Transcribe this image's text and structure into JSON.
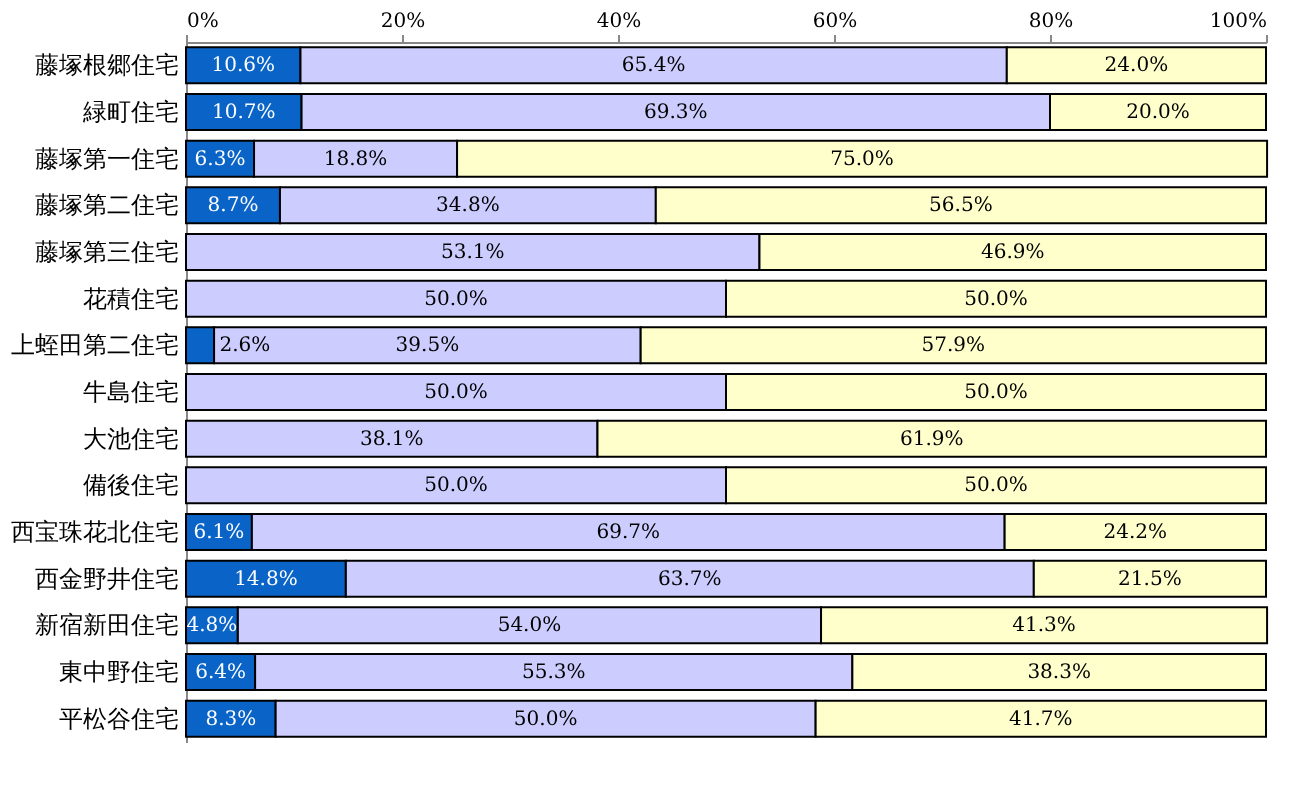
{
  "chart_data": {
    "type": "bar",
    "orientation": "horizontal",
    "stacked": true,
    "categories": [
      "藤塚根郷住宅",
      "緑町住宅",
      "藤塚第一住宅",
      "藤塚第二住宅",
      "藤塚第三住宅",
      "花積住宅",
      "上蛭田第二住宅",
      "牛島住宅",
      "大池住宅",
      "備後住宅",
      "西宝珠花北住宅",
      "西金野井住宅",
      "新宿新田住宅",
      "東中野住宅",
      "平松谷住宅"
    ],
    "series": [
      {
        "color": "#0a64c8",
        "values": [
          10.6,
          10.7,
          6.3,
          8.7,
          0,
          0,
          2.6,
          0,
          0,
          0,
          6.1,
          14.8,
          4.8,
          6.4,
          8.3
        ],
        "value_labels": [
          "10.6%",
          "10.7%",
          "6.3%",
          "8.7%",
          null,
          null,
          "2.6%",
          null,
          null,
          null,
          "6.1%",
          "14.8%",
          "4.8%",
          "6.4%",
          "8.3%"
        ]
      },
      {
        "color": "#ccccff",
        "values": [
          65.4,
          69.3,
          18.8,
          34.8,
          53.1,
          50.0,
          39.5,
          50.0,
          38.1,
          50.0,
          69.7,
          63.7,
          54.0,
          55.3,
          50.0
        ],
        "value_labels": [
          "65.4%",
          "69.3%",
          "18.8%",
          "34.8%",
          "53.1%",
          "50.0%",
          "39.5%",
          "50.0%",
          "38.1%",
          "50.0%",
          "69.7%",
          "63.7%",
          "54.0%",
          "55.3%",
          "50.0%"
        ]
      },
      {
        "color": "#ffffcc",
        "values": [
          24.0,
          20.0,
          75.0,
          56.5,
          46.9,
          50.0,
          57.9,
          50.0,
          61.9,
          50.0,
          24.2,
          21.5,
          41.3,
          38.3,
          41.7
        ],
        "value_labels": [
          "24.0%",
          "20.0%",
          "75.0%",
          "56.5%",
          "46.9%",
          "50.0%",
          "57.9%",
          "50.0%",
          "61.9%",
          "50.0%",
          "24.2%",
          "21.5%",
          "41.3%",
          "38.3%",
          "41.7%"
        ]
      }
    ],
    "xlim": [
      0,
      100
    ],
    "xticks": [
      {
        "value": 0,
        "label": "0%"
      },
      {
        "value": 20,
        "label": "20%"
      },
      {
        "value": 40,
        "label": "40%"
      },
      {
        "value": 60,
        "label": "60%"
      },
      {
        "value": 80,
        "label": "80%"
      },
      {
        "value": 100,
        "label": "100%"
      }
    ],
    "grid": false,
    "legend": false
  }
}
